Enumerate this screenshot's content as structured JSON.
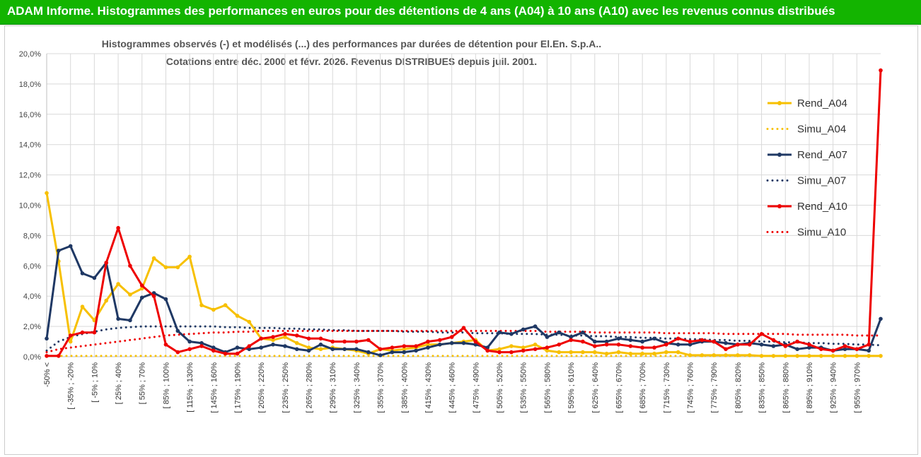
{
  "header": {
    "title": "ADAM Informe. Histogrammes des performances en euros pour des détentions de 4 ans (A04) à 10 ans (A10) avec les revenus connus distribués"
  },
  "chart_data": {
    "type": "line",
    "title_line1": "Histogrammes observés (-) et modélisés (...) des performances par durées de détention pour El.En. S.p.A..",
    "title_line2": "Cotations entre déc. 2000 et févr. 2026. Revenus DISTRIBUES depuis juil. 2001.",
    "ylim": [
      0,
      20
    ],
    "yticks": [
      "0,0%",
      "2,0%",
      "4,0%",
      "6,0%",
      "8,0%",
      "10,0%",
      "12,0%",
      "14,0%",
      "16,0%",
      "18,0%",
      "20,0%"
    ],
    "xtick_labels": [
      "-50% <",
      "[ -35% ; -20%",
      "[ -5% ; 10%",
      "[ 25% ; 40%",
      "[ 55% ; 70%",
      "[ 85% ; 100%",
      "[ 115% ; 130%",
      "[ 145% ; 160%",
      "[ 175% ; 190%",
      "[ 205% ; 220%",
      "[ 235% ; 250%",
      "[ 265% ; 280%",
      "[ 295% ; 310%",
      "[ 325% ; 340%",
      "[ 355% ; 370%",
      "[ 385% ; 400%",
      "[ 415% ; 430%",
      "[ 445% ; 460%",
      "[ 475% ; 490%",
      "[ 505% ; 520%",
      "[ 535% ; 550%",
      "[ 565% ; 580%",
      "[ 595% ; 610%",
      "[ 625% ; 640%",
      "[ 655% ; 670%",
      "[ 685% ; 700%",
      "[ 715% ; 730%",
      "[ 745% ; 760%",
      "[ 775% ; 790%",
      "[ 805% ; 820%",
      "[ 835% ; 850%",
      "[ 865% ; 880%",
      "[ 895% ; 910%",
      "[ 925% ; 940%",
      "[ 955% ; 970%"
    ],
    "n_points": 71,
    "colors": {
      "a04": "#f7c000",
      "a07": "#1f3864",
      "a10": "#ee0000"
    },
    "series": [
      {
        "name": "Rend_A04",
        "style": "solid",
        "color_key": "a04",
        "values": [
          10.8,
          6.3,
          1.0,
          3.3,
          2.4,
          3.7,
          4.8,
          4.1,
          4.5,
          6.5,
          5.9,
          5.9,
          6.6,
          3.4,
          3.1,
          3.4,
          2.7,
          2.3,
          1.2,
          1.1,
          1.3,
          0.9,
          0.6,
          0.5,
          0.6,
          0.5,
          0.4,
          0.2,
          0.5,
          0.4,
          0.5,
          0.6,
          0.8,
          0.8,
          0.9,
          1.0,
          1.1,
          0.4,
          0.5,
          0.7,
          0.6,
          0.8,
          0.4,
          0.3,
          0.3,
          0.3,
          0.3,
          0.2,
          0.3,
          0.2,
          0.2,
          0.2,
          0.3,
          0.3,
          0.1,
          0.1,
          0.1,
          0.1,
          0.1,
          0.1,
          0.05,
          0.05,
          0.05,
          0.05,
          0.05,
          0.05,
          0.05,
          0.05,
          0.05,
          0.05,
          0.05
        ]
      },
      {
        "name": "Simu_A04",
        "style": "dotted",
        "color_key": "a04",
        "values": [
          0.05,
          0.05,
          0.05,
          0.05,
          0.05,
          0.05,
          0.05,
          0.05,
          0.05,
          0.05,
          0.05,
          0.05,
          0.05,
          0.05,
          0.05,
          0.05,
          0.05,
          0.05,
          0.05,
          0.05,
          0.05,
          0.05,
          0.05,
          0.05,
          0.05,
          0.05,
          0.05,
          0.05,
          0.05,
          0.05,
          0.05,
          0.05,
          0.05,
          0.05,
          0.05,
          0.05,
          0.05,
          0.05,
          0.05,
          0.05,
          0.05,
          0.05,
          0.05,
          0.05,
          0.05,
          0.05,
          0.05,
          0.05,
          0.05,
          0.05,
          0.05,
          0.05,
          0.05,
          0.05,
          0.05,
          0.05,
          0.05,
          0.05,
          0.05,
          0.05,
          0.05,
          0.05,
          0.05,
          0.05,
          0.05,
          0.05,
          0.05,
          0.05,
          0.05,
          0.05,
          0.05
        ]
      },
      {
        "name": "Rend_A07",
        "style": "solid",
        "color_key": "a07",
        "values": [
          1.2,
          7.0,
          7.3,
          5.5,
          5.2,
          6.2,
          2.5,
          2.4,
          3.9,
          4.2,
          3.8,
          1.7,
          1.0,
          0.9,
          0.6,
          0.3,
          0.6,
          0.5,
          0.6,
          0.8,
          0.7,
          0.5,
          0.4,
          0.8,
          0.5,
          0.5,
          0.5,
          0.3,
          0.1,
          0.3,
          0.3,
          0.4,
          0.6,
          0.8,
          0.9,
          0.9,
          0.8,
          0.6,
          1.6,
          1.5,
          1.8,
          2.0,
          1.3,
          1.6,
          1.3,
          1.6,
          1.0,
          1.0,
          1.2,
          1.1,
          1.0,
          1.2,
          0.9,
          0.8,
          0.8,
          1.0,
          1.0,
          0.9,
          0.8,
          0.9,
          0.8,
          0.7,
          0.8,
          0.5,
          0.6,
          0.6,
          0.4,
          0.5,
          0.5,
          0.4,
          2.5
        ]
      },
      {
        "name": "Simu_A07",
        "style": "dotted",
        "color_key": "a07",
        "values": [
          0.4,
          1.0,
          1.3,
          1.5,
          1.65,
          1.8,
          1.9,
          1.95,
          2.0,
          2.0,
          2.0,
          2.0,
          2.0,
          2.0,
          2.0,
          1.95,
          1.95,
          1.9,
          1.9,
          1.9,
          1.85,
          1.85,
          1.8,
          1.8,
          1.75,
          1.75,
          1.7,
          1.7,
          1.7,
          1.7,
          1.65,
          1.65,
          1.65,
          1.6,
          1.6,
          1.6,
          1.55,
          1.55,
          1.55,
          1.5,
          1.5,
          1.5,
          1.45,
          1.45,
          1.4,
          1.4,
          1.35,
          1.35,
          1.3,
          1.3,
          1.25,
          1.25,
          1.2,
          1.2,
          1.15,
          1.15,
          1.1,
          1.1,
          1.05,
          1.05,
          1.0,
          1.0,
          0.95,
          0.95,
          0.9,
          0.9,
          0.85,
          0.85,
          0.8,
          0.8,
          0.75
        ]
      },
      {
        "name": "Rend_A10",
        "style": "solid",
        "color_key": "a10",
        "values": [
          0.05,
          0.05,
          1.4,
          1.6,
          1.6,
          6.2,
          8.5,
          6.0,
          4.7,
          4.0,
          0.8,
          0.3,
          0.5,
          0.7,
          0.4,
          0.2,
          0.2,
          0.7,
          1.2,
          1.3,
          1.5,
          1.4,
          1.2,
          1.2,
          1.0,
          1.0,
          1.0,
          1.1,
          0.5,
          0.6,
          0.7,
          0.7,
          1.0,
          1.1,
          1.3,
          1.9,
          1.0,
          0.4,
          0.3,
          0.3,
          0.4,
          0.5,
          0.6,
          0.8,
          1.1,
          1.0,
          0.7,
          0.8,
          0.8,
          0.7,
          0.6,
          0.6,
          0.8,
          1.2,
          1.0,
          1.1,
          1.0,
          0.5,
          0.8,
          0.8,
          1.5,
          1.1,
          0.7,
          1.0,
          0.8,
          0.5,
          0.4,
          0.7,
          0.5,
          0.8,
          18.9
        ]
      },
      {
        "name": "Simu_A10",
        "style": "dotted",
        "color_key": "a10",
        "values": [
          0.3,
          0.5,
          0.6,
          0.7,
          0.8,
          0.9,
          1.0,
          1.1,
          1.2,
          1.3,
          1.4,
          1.45,
          1.5,
          1.55,
          1.6,
          1.6,
          1.65,
          1.65,
          1.7,
          1.7,
          1.7,
          1.7,
          1.7,
          1.7,
          1.7,
          1.7,
          1.7,
          1.7,
          1.7,
          1.7,
          1.7,
          1.7,
          1.7,
          1.7,
          1.7,
          1.7,
          1.7,
          1.7,
          1.7,
          1.7,
          1.7,
          1.7,
          1.65,
          1.65,
          1.65,
          1.65,
          1.6,
          1.6,
          1.6,
          1.6,
          1.6,
          1.6,
          1.55,
          1.55,
          1.55,
          1.55,
          1.55,
          1.5,
          1.5,
          1.5,
          1.5,
          1.5,
          1.5,
          1.45,
          1.45,
          1.45,
          1.45,
          1.45,
          1.4,
          1.4,
          1.4
        ]
      }
    ]
  }
}
